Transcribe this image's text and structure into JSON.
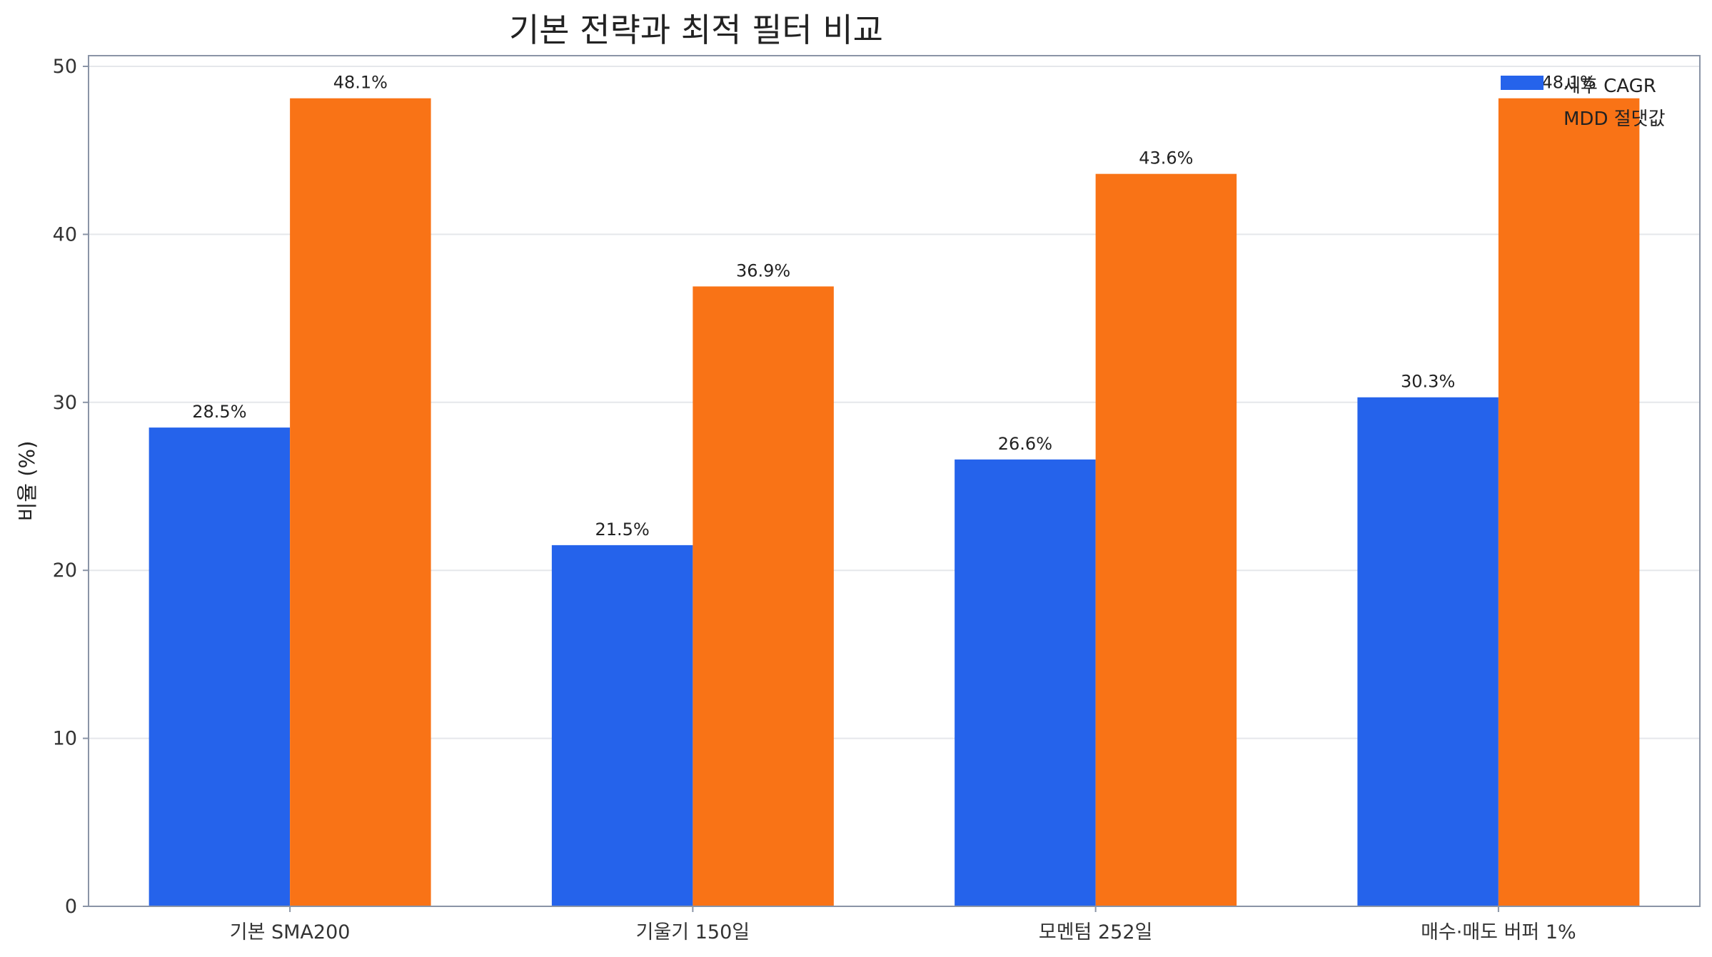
{
  "chart_data": {
    "type": "bar",
    "title": "기본 전략과 최적 필터 비교",
    "xlabel": "",
    "ylabel": "비율 (%)",
    "ylim": [
      0,
      50
    ],
    "yticks": [
      0,
      10,
      20,
      30,
      40,
      50
    ],
    "grid": "y",
    "legend_position": "top-right",
    "categories": [
      "기본 SMA200",
      "기울기 150일",
      "모멘텀 252일",
      "매수·매도 버퍼 1%"
    ],
    "series": [
      {
        "name": "세후 CAGR",
        "color": "#2563eb",
        "values": [
          28.5,
          21.5,
          26.6,
          30.3
        ],
        "labels": [
          "28.5%",
          "21.5%",
          "26.6%",
          "30.3%"
        ]
      },
      {
        "name": "MDD 절댓값",
        "color": "#f97316",
        "values": [
          48.1,
          36.9,
          43.6,
          48.1
        ],
        "labels": [
          "48.1%",
          "36.9%",
          "43.6%",
          "48.1%"
        ]
      }
    ]
  }
}
